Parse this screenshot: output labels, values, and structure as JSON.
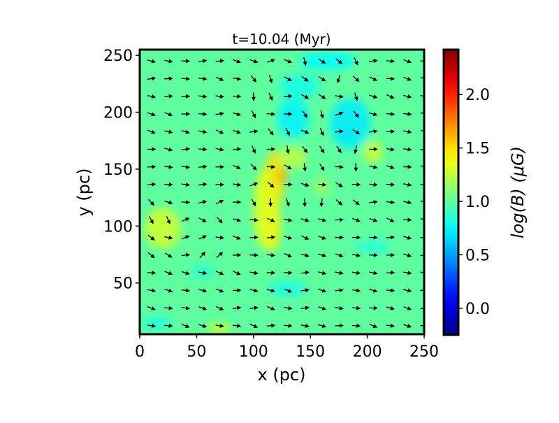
{
  "chart_data": {
    "type": "heatmap",
    "title": "t=10.04 (Myr)",
    "xlabel": "x (pc)",
    "ylabel": "y (pc)",
    "xlim": [
      0,
      250
    ],
    "ylim": [
      5,
      255
    ],
    "xticks": [
      {
        "value": 0,
        "label": "0"
      },
      {
        "value": 50,
        "label": "50"
      },
      {
        "value": 100,
        "label": "100"
      },
      {
        "value": 150,
        "label": "150"
      },
      {
        "value": 200,
        "label": "200"
      },
      {
        "value": 250,
        "label": "250"
      }
    ],
    "yticks": [
      {
        "value": 50,
        "label": "50"
      },
      {
        "value": 100,
        "label": "100"
      },
      {
        "value": 150,
        "label": "150"
      },
      {
        "value": 200,
        "label": "200"
      },
      {
        "value": 250,
        "label": "250"
      }
    ],
    "colorbar": {
      "label": "log(B) (μG)",
      "range": [
        -0.25,
        2.42
      ],
      "colormap": "jet",
      "ticks": [
        {
          "value": 0.0,
          "label": "0.0"
        },
        {
          "value": 0.5,
          "label": "0.5"
        },
        {
          "value": 1.0,
          "label": "1.0"
        },
        {
          "value": 1.5,
          "label": "1.5"
        },
        {
          "value": 2.0,
          "label": "2.0"
        }
      ]
    },
    "background_value": 1.0,
    "features": [
      {
        "x": 124,
        "y": 144,
        "value": 2.05,
        "rx": 5,
        "ry": 7
      },
      {
        "x": 118,
        "y": 140,
        "value": 1.5,
        "rx": 9,
        "ry": 26
      },
      {
        "x": 116,
        "y": 100,
        "value": 1.45,
        "rx": 8,
        "ry": 22
      },
      {
        "x": 115,
        "y": 92,
        "value": 1.65,
        "rx": 3,
        "ry": 4
      },
      {
        "x": 110,
        "y": 115,
        "value": 1.35,
        "rx": 10,
        "ry": 35
      },
      {
        "x": 135,
        "y": 160,
        "value": 1.25,
        "rx": 12,
        "ry": 10
      },
      {
        "x": 20,
        "y": 98,
        "value": 1.3,
        "rx": 16,
        "ry": 18
      },
      {
        "x": 70,
        "y": 10,
        "value": 1.35,
        "rx": 10,
        "ry": 4
      },
      {
        "x": 205,
        "y": 165,
        "value": 1.3,
        "rx": 8,
        "ry": 10
      },
      {
        "x": 160,
        "y": 135,
        "value": 1.2,
        "rx": 6,
        "ry": 8
      },
      {
        "x": 180,
        "y": 182,
        "value": 0.42,
        "rx": 4,
        "ry": 4
      },
      {
        "x": 185,
        "y": 190,
        "value": 0.7,
        "rx": 18,
        "ry": 22
      },
      {
        "x": 135,
        "y": 195,
        "value": 0.72,
        "rx": 14,
        "ry": 18
      },
      {
        "x": 165,
        "y": 245,
        "value": 0.75,
        "rx": 25,
        "ry": 8
      },
      {
        "x": 140,
        "y": 223,
        "value": 0.8,
        "rx": 18,
        "ry": 10
      },
      {
        "x": 130,
        "y": 45,
        "value": 0.78,
        "rx": 16,
        "ry": 6
      },
      {
        "x": 15,
        "y": 15,
        "value": 0.82,
        "rx": 12,
        "ry": 6
      },
      {
        "x": 205,
        "y": 82,
        "value": 0.85,
        "rx": 15,
        "ry": 6
      },
      {
        "x": 55,
        "y": 60,
        "value": 0.85,
        "rx": 10,
        "ry": 6
      }
    ],
    "vector_field": {
      "x_start": 10,
      "x_step": 15,
      "nx": 17,
      "y_start": 12.5,
      "y_step": 15.5,
      "ny": 16,
      "mean_angle_deg": -8
    },
    "grid": false
  }
}
